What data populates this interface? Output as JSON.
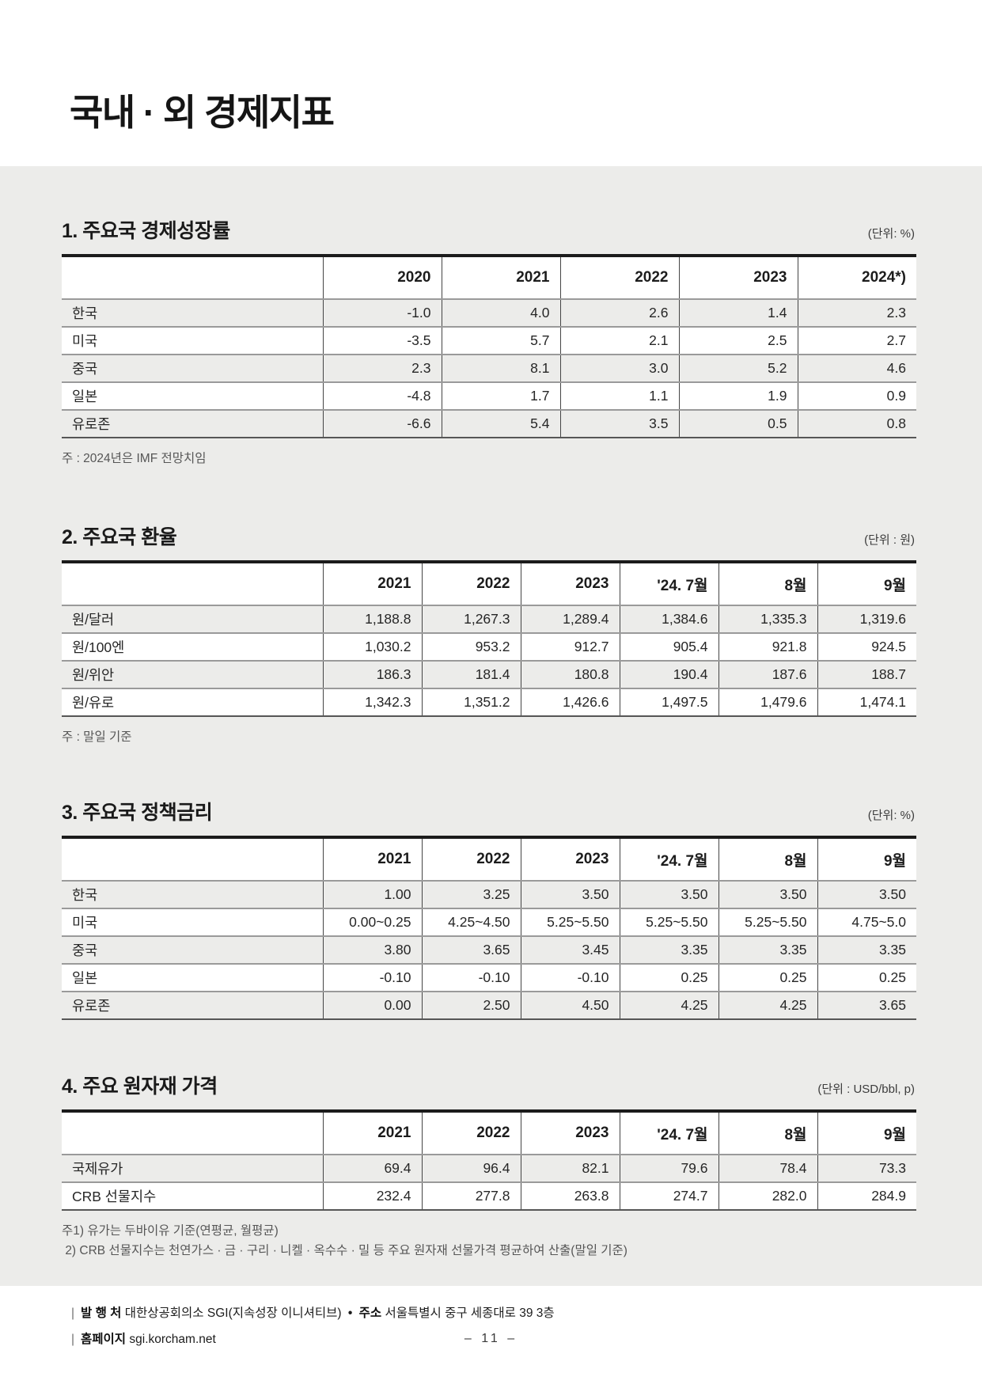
{
  "page": {
    "title": "국내 · 외 경제지표",
    "page_number": "– 11 –"
  },
  "sections": [
    {
      "heading": "1. 주요국 경제성장률",
      "unit": "(단위: %)",
      "columns": [
        "",
        "2020",
        "2021",
        "2022",
        "2023",
        "2024*)"
      ],
      "rows": [
        {
          "label": "한국",
          "values": [
            "-1.0",
            "4.0",
            "2.6",
            "1.4",
            "2.3"
          ]
        },
        {
          "label": "미국",
          "values": [
            "-3.5",
            "5.7",
            "2.1",
            "2.5",
            "2.7"
          ]
        },
        {
          "label": "중국",
          "values": [
            "2.3",
            "8.1",
            "3.0",
            "5.2",
            "4.6"
          ]
        },
        {
          "label": "일본",
          "values": [
            "-4.8",
            "1.7",
            "1.1",
            "1.9",
            "0.9"
          ]
        },
        {
          "label": "유로존",
          "values": [
            "-6.6",
            "5.4",
            "3.5",
            "0.5",
            "0.8"
          ]
        }
      ],
      "notes": [
        "주 : 2024년은 IMF 전망치임"
      ]
    },
    {
      "heading": "2. 주요국 환율",
      "unit": "(단위 : 원)",
      "columns": [
        "",
        "2021",
        "2022",
        "2023",
        "'24. 7월",
        "8월",
        "9월"
      ],
      "rows": [
        {
          "label": "원/달러",
          "values": [
            "1,188.8",
            "1,267.3",
            "1,289.4",
            "1,384.6",
            "1,335.3",
            "1,319.6"
          ]
        },
        {
          "label": "원/100엔",
          "values": [
            "1,030.2",
            "953.2",
            "912.7",
            "905.4",
            "921.8",
            "924.5"
          ]
        },
        {
          "label": "원/위안",
          "values": [
            "186.3",
            "181.4",
            "180.8",
            "190.4",
            "187.6",
            "188.7"
          ]
        },
        {
          "label": "원/유로",
          "values": [
            "1,342.3",
            "1,351.2",
            "1,426.6",
            "1,497.5",
            "1,479.6",
            "1,474.1"
          ]
        }
      ],
      "notes": [
        "주 : 말일 기준"
      ]
    },
    {
      "heading": "3. 주요국 정책금리",
      "unit": "(단위: %)",
      "columns": [
        "",
        "2021",
        "2022",
        "2023",
        "'24. 7월",
        "8월",
        "9월"
      ],
      "rows": [
        {
          "label": "한국",
          "values": [
            "1.00",
            "3.25",
            "3.50",
            "3.50",
            "3.50",
            "3.50"
          ]
        },
        {
          "label": "미국",
          "values": [
            "0.00~0.25",
            "4.25~4.50",
            "5.25~5.50",
            "5.25~5.50",
            "5.25~5.50",
            "4.75~5.0"
          ]
        },
        {
          "label": "중국",
          "values": [
            "3.80",
            "3.65",
            "3.45",
            "3.35",
            "3.35",
            "3.35"
          ]
        },
        {
          "label": "일본",
          "values": [
            "-0.10",
            "-0.10",
            "-0.10",
            "0.25",
            "0.25",
            "0.25"
          ]
        },
        {
          "label": "유로존",
          "values": [
            "0.00",
            "2.50",
            "4.50",
            "4.25",
            "4.25",
            "3.65"
          ]
        }
      ],
      "notes": []
    },
    {
      "heading": "4. 주요 원자재 가격",
      "unit": "(단위 : USD/bbl, p)",
      "columns": [
        "",
        "2021",
        "2022",
        "2023",
        "'24. 7월",
        "8월",
        "9월"
      ],
      "rows": [
        {
          "label": "국제유가",
          "values": [
            "69.4",
            "96.4",
            "82.1",
            "79.6",
            "78.4",
            "73.3"
          ]
        },
        {
          "label": "CRB 선물지수",
          "values": [
            "232.4",
            "277.8",
            "263.8",
            "274.7",
            "282.0",
            "284.9"
          ]
        }
      ],
      "notes": [
        "주1) 유가는 두바이유 기준(연평균, 월평균)",
        " 2) CRB 선물지수는 천연가스 · 금 · 구리 · 니켈 · 옥수수 · 밀 등 주요 원자재 선물가격 평균하여 산출(말일 기준)"
      ]
    }
  ],
  "footer": {
    "bar": "|",
    "publisher_label": "발 행 처",
    "publisher": "대한상공회의소 SGI(지속성장 이니셔티브)",
    "bullet": "•",
    "address_label": "주소",
    "address": "서울특별시 중구 세종대로 39 3층",
    "website_label": "홈페이지",
    "website": "sgi.korcham.net"
  }
}
